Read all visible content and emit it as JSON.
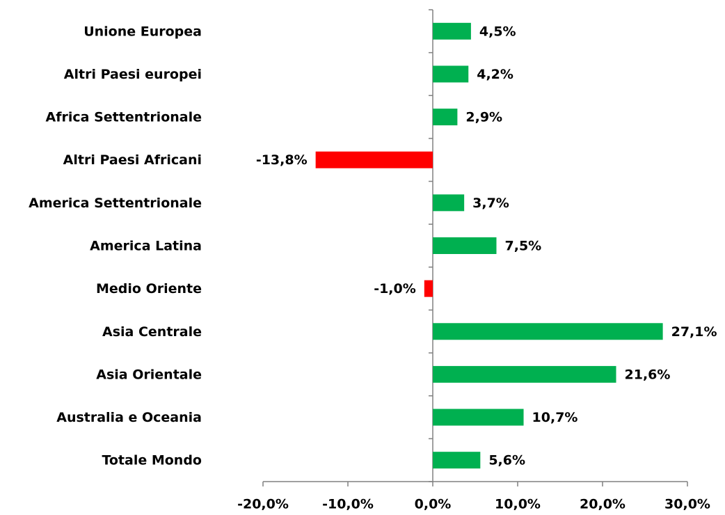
{
  "chart_data": {
    "type": "barh",
    "categories": [
      "Unione Europea",
      "Altri Paesi europei",
      "Africa Settentrionale",
      "Altri Paesi Africani",
      "America Settentrionale",
      "America Latina",
      "Medio Oriente",
      "Asia Centrale",
      "Asia Orientale",
      "Australia e Oceania",
      "Totale Mondo"
    ],
    "values": [
      4.5,
      4.2,
      2.9,
      -13.8,
      3.7,
      7.5,
      -1.0,
      27.1,
      21.6,
      10.7,
      5.6
    ],
    "value_labels": [
      "4,5%",
      "4,2%",
      "2,9%",
      "-13,8%",
      "3,7%",
      "7,5%",
      "-1,0%",
      "27,1%",
      "21,6%",
      "10,7%",
      "5,6%"
    ],
    "colors": [
      "#00b050",
      "#00b050",
      "#00b050",
      "#ff0000",
      "#00b050",
      "#00b050",
      "#ff0000",
      "#00b050",
      "#00b050",
      "#00b050",
      "#00b050"
    ],
    "xlim": [
      -20,
      30
    ],
    "xticks": [
      {
        "value": -20,
        "label": "-20,0%"
      },
      {
        "value": -10,
        "label": "-10,0%"
      },
      {
        "value": 0,
        "label": "0,0%"
      },
      {
        "value": 10,
        "label": "10,0%"
      },
      {
        "value": 20,
        "label": "20,0%"
      },
      {
        "value": 30,
        "label": "30,0%"
      }
    ],
    "grid": false
  }
}
